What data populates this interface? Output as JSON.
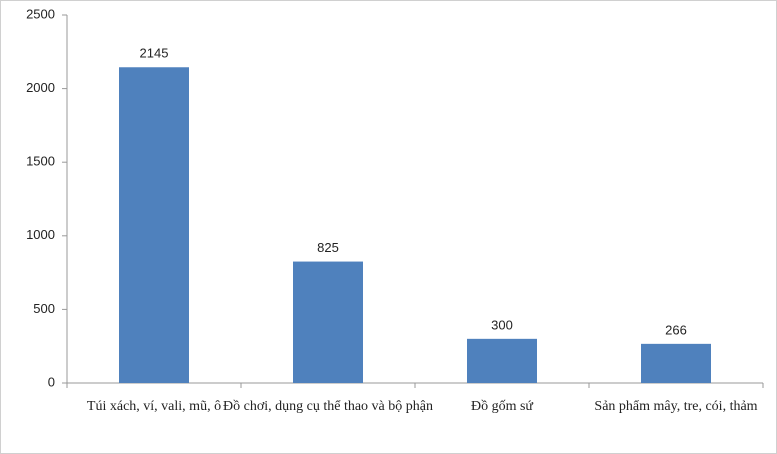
{
  "chart_data": {
    "type": "bar",
    "categories": [
      "Túi xách, ví, vali, mũ, ô",
      "Đồ chơi, dụng cụ thể thao và bộ phận",
      "Đồ gốm sứ",
      "Sản phẩm mây, tre, cói, thảm"
    ],
    "values": [
      2145,
      825,
      300,
      266
    ],
    "color": "#4f81bd",
    "ylim": [
      0,
      2500
    ],
    "yticks": [
      0,
      500,
      1000,
      1500,
      2000,
      2500
    ],
    "grid": false
  }
}
